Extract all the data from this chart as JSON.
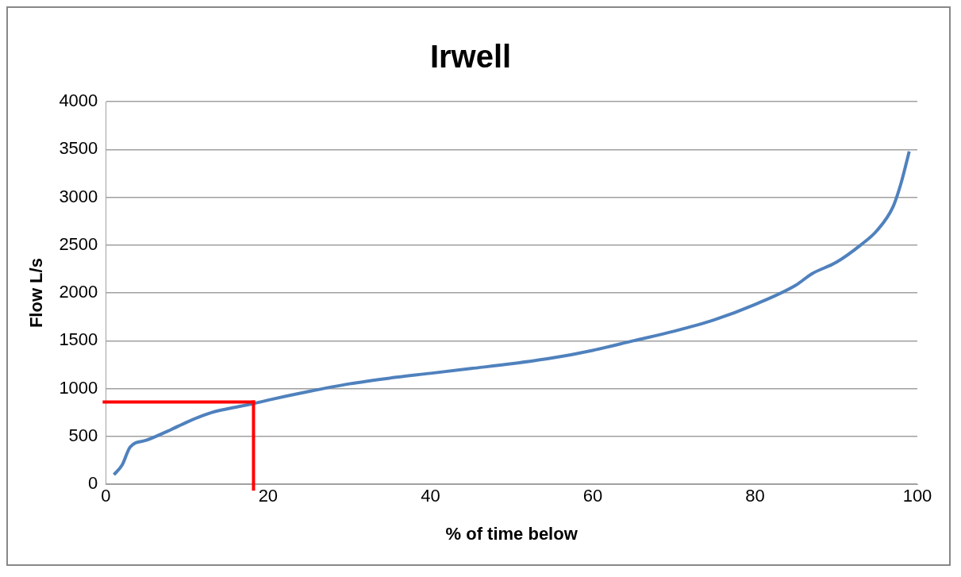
{
  "chart_data": {
    "type": "line",
    "title": "Irwell",
    "xlabel": "% of time below",
    "ylabel": "Flow L/s",
    "x": [
      1,
      2,
      3,
      5,
      8,
      10,
      13,
      15,
      18,
      20,
      25,
      30,
      35,
      40,
      45,
      50,
      55,
      60,
      65,
      70,
      75,
      80,
      85,
      87,
      90,
      93,
      95,
      97,
      98,
      99
    ],
    "xlim": [
      0,
      100
    ],
    "xticks": [
      0,
      20,
      40,
      60,
      80,
      100
    ],
    "ylim": [
      0,
      4000
    ],
    "yticks": [
      0,
      500,
      1000,
      1500,
      2000,
      2500,
      3000,
      3500,
      4000
    ],
    "grid": "y",
    "legend": false,
    "marker": "none",
    "line_style": "solid",
    "series": [
      {
        "color": "#4f81bd",
        "values": [
          100,
          200,
          390,
          460,
          570,
          650,
          750,
          790,
          840,
          880,
          970,
          1050,
          1110,
          1160,
          1210,
          1260,
          1320,
          1400,
          1500,
          1600,
          1720,
          1880,
          2080,
          2200,
          2320,
          2500,
          2650,
          2900,
          3150,
          3480
        ]
      }
    ],
    "ref_lines": [
      {
        "axis": "x",
        "value": 18.2,
        "color": "#ff0000",
        "line_style": "solid"
      },
      {
        "axis": "y",
        "value": 860,
        "color": "#ff0000",
        "line_style": "solid"
      }
    ]
  }
}
